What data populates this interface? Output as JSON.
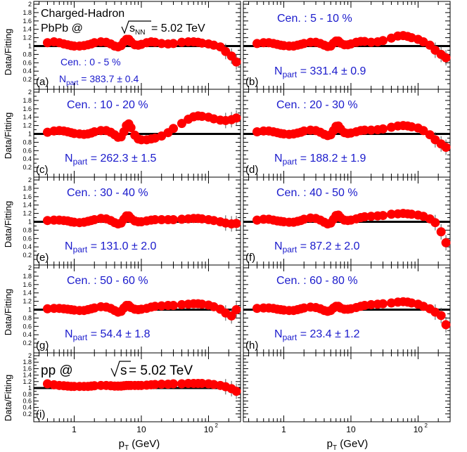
{
  "figure": {
    "x_axis_label": "p",
    "x_axis_sub": "T",
    "x_axis_unit": " (GeV)",
    "y_axis_label": "Data/Fitting",
    "x_tick_labels": [
      "1",
      "10",
      "10",
      "2"
    ],
    "y_tick_labels": [
      "0.2",
      "0.4",
      "0.6",
      "0.8",
      "1",
      "1.2",
      "1.4",
      "1.6",
      "1.8",
      "2"
    ],
    "header": {
      "line1": "Charged-Hadron",
      "line2_prefix": "PbPb @ ",
      "sqrt_s": "s",
      "sqrt_sub": "NN",
      "line2_suffix": " = 5.02 TeV"
    },
    "pp_label": {
      "prefix": "pp @ ",
      "sqrt_s": "s",
      "suffix": " = 5.02 TeV"
    },
    "colors": {
      "marker": "#ff0000",
      "text": "#1a1acc",
      "axis": "#000000"
    }
  },
  "chart_data": [
    {
      "panel": "(a)",
      "cen": "Cen. : 0 - 5 %",
      "npart_label": "N",
      "npart_sub": "part",
      "npart_value": " = 383.7 ± 0.4",
      "type": "scatter",
      "xscale": "log",
      "xlim": [
        0.25,
        300
      ],
      "ylim": [
        0,
        2
      ],
      "xlabel": "pT (GeV)",
      "ylabel": "Data/Fitting",
      "x": [
        0.4,
        0.5,
        0.6,
        0.7,
        0.8,
        0.9,
        1.0,
        1.2,
        1.4,
        1.6,
        1.8,
        2.0,
        2.5,
        3,
        3.5,
        4,
        4.5,
        5,
        5.5,
        6,
        6.5,
        7,
        8,
        9,
        10,
        12,
        14,
        16,
        20,
        25,
        30,
        40,
        50,
        60,
        70,
        80,
        100,
        120,
        150,
        180,
        220,
        260
      ],
      "y": [
        1.08,
        1.1,
        1.08,
        1.05,
        1.03,
        1.01,
        1.0,
        1.0,
        1.01,
        1.03,
        1.05,
        1.08,
        1.1,
        1.09,
        1.05,
        1.0,
        0.98,
        1.01,
        1.1,
        1.16,
        1.16,
        1.1,
        1.03,
        1.02,
        1.04,
        1.08,
        1.1,
        1.09,
        1.06,
        1.05,
        1.06,
        1.09,
        1.1,
        1.1,
        1.09,
        1.07,
        1.05,
        1.02,
        0.98,
        0.87,
        0.76,
        0.62
      ]
    },
    {
      "panel": "(b)",
      "cen": "Cen. : 5 - 10 %",
      "npart_label": "N",
      "npart_sub": "part",
      "npart_value": " = 331.4 ± 0.9",
      "type": "scatter",
      "xscale": "log",
      "xlim": [
        0.25,
        300
      ],
      "ylim": [
        0,
        2
      ],
      "x": [
        0.4,
        0.5,
        0.6,
        0.7,
        0.8,
        0.9,
        1.0,
        1.2,
        1.4,
        1.6,
        1.8,
        2.0,
        2.5,
        3,
        3.5,
        4,
        4.5,
        5,
        5.5,
        6,
        6.5,
        7,
        8,
        9,
        10,
        12,
        14,
        16,
        20,
        25,
        30,
        40,
        50,
        60,
        70,
        80,
        100,
        120,
        150,
        180,
        220,
        260
      ],
      "y": [
        1.06,
        1.08,
        1.08,
        1.06,
        1.04,
        1.02,
        1.01,
        1.0,
        1.0,
        1.02,
        1.04,
        1.06,
        1.09,
        1.09,
        1.06,
        1.02,
        0.99,
        1.0,
        1.07,
        1.12,
        1.12,
        1.07,
        1.03,
        1.03,
        1.05,
        1.09,
        1.11,
        1.11,
        1.09,
        1.1,
        1.13,
        1.19,
        1.24,
        1.25,
        1.23,
        1.2,
        1.16,
        1.1,
        1.02,
        0.9,
        0.8,
        0.72
      ]
    },
    {
      "panel": "(c)",
      "cen": "Cen. : 10 - 20 %",
      "npart_label": "N",
      "npart_sub": "part",
      "npart_value": " = 262.3 ± 1.5",
      "type": "scatter",
      "xscale": "log",
      "xlim": [
        0.25,
        300
      ],
      "ylim": [
        0,
        2
      ],
      "x": [
        0.4,
        0.5,
        0.6,
        0.7,
        0.8,
        0.9,
        1.0,
        1.2,
        1.4,
        1.6,
        1.8,
        2.0,
        2.5,
        3,
        3.5,
        4,
        4.5,
        5,
        5.5,
        6,
        6.5,
        7,
        8,
        9,
        10,
        12,
        14,
        16,
        20,
        25,
        30,
        40,
        50,
        60,
        70,
        80,
        100,
        120,
        150,
        180,
        220,
        260
      ],
      "y": [
        1.04,
        1.07,
        1.08,
        1.07,
        1.05,
        1.03,
        1.01,
        1.0,
        0.99,
        1.0,
        1.02,
        1.05,
        1.08,
        1.08,
        1.04,
        0.98,
        0.92,
        0.93,
        1.05,
        1.2,
        1.24,
        1.15,
        0.97,
        0.88,
        0.86,
        0.86,
        0.88,
        0.9,
        0.95,
        1.03,
        1.13,
        1.25,
        1.35,
        1.41,
        1.43,
        1.42,
        1.4,
        1.36,
        1.33,
        1.32,
        1.34,
        1.38
      ]
    },
    {
      "panel": "(d)",
      "cen": "Cen. : 20 - 30 %",
      "npart_label": "N",
      "npart_sub": "part",
      "npart_value": " = 188.2 ± 1.9",
      "type": "scatter",
      "xscale": "log",
      "xlim": [
        0.25,
        300
      ],
      "ylim": [
        0,
        2
      ],
      "x": [
        0.4,
        0.5,
        0.6,
        0.7,
        0.8,
        0.9,
        1.0,
        1.2,
        1.4,
        1.6,
        1.8,
        2.0,
        2.5,
        3,
        3.5,
        4,
        4.5,
        5,
        5.5,
        6,
        6.5,
        7,
        8,
        9,
        10,
        12,
        14,
        16,
        20,
        25,
        30,
        40,
        50,
        60,
        70,
        80,
        100,
        120,
        150,
        180,
        220,
        260
      ],
      "y": [
        1.05,
        1.07,
        1.07,
        1.05,
        1.03,
        1.01,
        1.0,
        0.99,
        1.0,
        1.02,
        1.04,
        1.07,
        1.09,
        1.08,
        1.04,
        0.99,
        0.96,
        0.98,
        1.08,
        1.18,
        1.19,
        1.12,
        1.03,
        1.01,
        1.02,
        1.05,
        1.08,
        1.09,
        1.09,
        1.1,
        1.12,
        1.16,
        1.19,
        1.2,
        1.19,
        1.17,
        1.14,
        1.08,
        0.98,
        0.86,
        0.76,
        0.68
      ]
    },
    {
      "panel": "(e)",
      "cen": "Cen. : 30 - 40 %",
      "npart_label": "N",
      "npart_sub": "part",
      "npart_value": " = 131.0 ± 2.0",
      "type": "scatter",
      "xscale": "log",
      "xlim": [
        0.25,
        300
      ],
      "ylim": [
        0,
        2
      ],
      "x": [
        0.4,
        0.5,
        0.6,
        0.7,
        0.8,
        0.9,
        1.0,
        1.2,
        1.4,
        1.6,
        1.8,
        2.0,
        2.5,
        3,
        3.5,
        4,
        4.5,
        5,
        5.5,
        6,
        6.5,
        7,
        8,
        9,
        10,
        12,
        14,
        16,
        20,
        25,
        30,
        40,
        50,
        60,
        70,
        80,
        100,
        120,
        150,
        180,
        220,
        260
      ],
      "y": [
        1.03,
        1.04,
        1.04,
        1.03,
        1.02,
        1.0,
        0.99,
        0.98,
        0.99,
        1.01,
        1.03,
        1.05,
        1.08,
        1.07,
        1.03,
        0.98,
        0.95,
        0.97,
        1.06,
        1.14,
        1.14,
        1.08,
        1.02,
        1.0,
        1.0,
        1.02,
        1.04,
        1.05,
        1.05,
        1.05,
        1.05,
        1.06,
        1.07,
        1.08,
        1.08,
        1.07,
        1.05,
        1.03,
        1.0,
        0.97,
        0.95,
        0.96
      ]
    },
    {
      "panel": "(f)",
      "cen": "Cen. : 40 - 50 %",
      "npart_label": "N",
      "npart_sub": "part",
      "npart_value": " = 87.2 ± 2.0",
      "type": "scatter",
      "xscale": "log",
      "xlim": [
        0.25,
        300
      ],
      "ylim": [
        0,
        2
      ],
      "x": [
        0.4,
        0.5,
        0.6,
        0.7,
        0.8,
        0.9,
        1.0,
        1.2,
        1.4,
        1.6,
        1.8,
        2.0,
        2.5,
        3,
        3.5,
        4,
        4.5,
        5,
        5.5,
        6,
        6.5,
        7,
        8,
        9,
        10,
        12,
        14,
        16,
        20,
        25,
        30,
        40,
        50,
        60,
        70,
        80,
        100,
        120,
        150,
        180,
        220,
        260
      ],
      "y": [
        1.04,
        1.06,
        1.06,
        1.04,
        1.02,
        1.01,
        1.0,
        0.99,
        0.99,
        1.01,
        1.03,
        1.06,
        1.09,
        1.08,
        1.04,
        0.99,
        0.95,
        0.97,
        1.06,
        1.15,
        1.16,
        1.1,
        1.04,
        1.03,
        1.04,
        1.07,
        1.1,
        1.12,
        1.13,
        1.14,
        1.15,
        1.18,
        1.19,
        1.2,
        1.19,
        1.18,
        1.16,
        1.13,
        1.07,
        0.98,
        0.76,
        0.5
      ]
    },
    {
      "panel": "(g)",
      "cen": "Cen. : 50 - 60 %",
      "npart_label": "N",
      "npart_sub": "part",
      "npart_value": " = 54.4 ± 1.8",
      "type": "scatter",
      "xscale": "log",
      "xlim": [
        0.25,
        300
      ],
      "ylim": [
        0,
        2
      ],
      "x": [
        0.4,
        0.5,
        0.6,
        0.7,
        0.8,
        0.9,
        1.0,
        1.2,
        1.4,
        1.6,
        1.8,
        2.0,
        2.5,
        3,
        3.5,
        4,
        4.5,
        5,
        5.5,
        6,
        6.5,
        7,
        8,
        9,
        10,
        12,
        14,
        16,
        20,
        25,
        30,
        40,
        50,
        60,
        70,
        80,
        100,
        120,
        150,
        180,
        220,
        260
      ],
      "y": [
        1.02,
        1.03,
        1.03,
        1.02,
        1.01,
        1.0,
        0.99,
        0.98,
        0.98,
        1.0,
        1.02,
        1.04,
        1.07,
        1.06,
        1.03,
        0.98,
        0.94,
        0.96,
        1.04,
        1.1,
        1.1,
        1.05,
        1.01,
        1.0,
        1.01,
        1.03,
        1.06,
        1.08,
        1.09,
        1.1,
        1.1,
        1.12,
        1.13,
        1.14,
        1.14,
        1.13,
        1.11,
        1.07,
        1.01,
        0.92,
        0.85,
        1.0
      ]
    },
    {
      "panel": "(h)",
      "cen": "Cen. : 60 - 80 %",
      "npart_label": "N",
      "npart_sub": "part",
      "npart_value": " = 23.4 ± 1.2",
      "type": "scatter",
      "xscale": "log",
      "xlim": [
        0.25,
        300
      ],
      "ylim": [
        0,
        2
      ],
      "x": [
        0.4,
        0.5,
        0.6,
        0.7,
        0.8,
        0.9,
        1.0,
        1.2,
        1.4,
        1.6,
        1.8,
        2.0,
        2.5,
        3,
        3.5,
        4,
        4.5,
        5,
        5.5,
        6,
        6.5,
        7,
        8,
        9,
        10,
        12,
        14,
        16,
        20,
        25,
        30,
        40,
        50,
        60,
        70,
        80,
        100,
        120,
        150,
        180,
        220,
        260
      ],
      "y": [
        1.03,
        1.04,
        1.04,
        1.03,
        1.01,
        1.0,
        0.99,
        0.98,
        0.98,
        1.0,
        1.02,
        1.04,
        1.06,
        1.05,
        1.02,
        0.98,
        0.96,
        0.98,
        1.04,
        1.08,
        1.08,
        1.04,
        1.01,
        1.01,
        1.02,
        1.05,
        1.08,
        1.1,
        1.12,
        1.13,
        1.14,
        1.16,
        1.18,
        1.19,
        1.18,
        1.16,
        1.13,
        1.08,
        1.02,
        0.94,
        0.86,
        0.64
      ]
    },
    {
      "panel": "(i)",
      "cen": "",
      "npart_label": "",
      "npart_sub": "",
      "npart_value": "",
      "type": "scatter",
      "xscale": "log",
      "xlim": [
        0.25,
        300
      ],
      "ylim": [
        0,
        2
      ],
      "x": [
        0.4,
        0.5,
        0.6,
        0.7,
        0.8,
        0.9,
        1.0,
        1.2,
        1.4,
        1.6,
        1.8,
        2.0,
        2.5,
        3,
        3.5,
        4,
        4.5,
        5,
        5.5,
        6,
        6.5,
        7,
        8,
        9,
        10,
        12,
        14,
        16,
        20,
        25,
        30,
        40,
        50,
        60,
        70,
        80,
        100,
        120,
        150,
        180,
        220,
        260
      ],
      "y": [
        1.13,
        1.1,
        1.08,
        1.07,
        1.06,
        1.05,
        1.05,
        1.05,
        1.05,
        1.05,
        1.06,
        1.07,
        1.08,
        1.08,
        1.07,
        1.06,
        1.06,
        1.06,
        1.07,
        1.08,
        1.08,
        1.08,
        1.08,
        1.08,
        1.08,
        1.09,
        1.1,
        1.11,
        1.12,
        1.12,
        1.13,
        1.13,
        1.14,
        1.14,
        1.14,
        1.14,
        1.13,
        1.11,
        1.08,
        1.04,
        0.98,
        0.9
      ]
    }
  ]
}
